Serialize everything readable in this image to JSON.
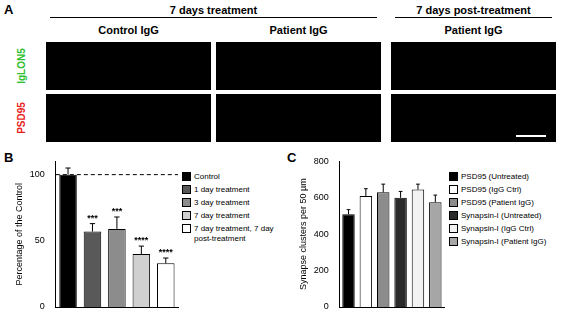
{
  "figure": {
    "panel_labels": [
      "A",
      "B",
      "C"
    ],
    "panel_a": {
      "groups": [
        {
          "label": "7 days treatment",
          "columns": [
            "Control IgG",
            "Patient IgG"
          ]
        },
        {
          "label": "7 days post-treatment",
          "columns": [
            "Patient IgG"
          ]
        }
      ],
      "rows": [
        {
          "label": "IgLON5",
          "color": "#2fbf2f"
        },
        {
          "label": "PSD95",
          "color": "#e81e1e"
        }
      ]
    }
  },
  "chart_data": [
    {
      "type": "bar",
      "y_label": "Percentage of the Control",
      "categories": [
        "Control",
        "1 day treatment",
        "3 day treatment",
        "7 day treatment",
        "7 day treatment, 7 day post-treatment"
      ],
      "values": [
        100,
        57,
        59,
        40,
        33
      ],
      "errors": [
        5,
        6,
        9,
        6,
        4
      ],
      "significance": [
        null,
        "***",
        "***",
        "****",
        "****"
      ],
      "colors": [
        "#000000",
        "#595959",
        "#8c8c8c",
        "#d0d0d0",
        "#ffffff"
      ],
      "reference_line": {
        "value": 100,
        "line_style": "dashed"
      },
      "ylim": [
        0,
        110
      ],
      "yticks": [
        0,
        50,
        100
      ],
      "grid": false,
      "legend": "right",
      "tick_labels": "y"
    },
    {
      "type": "bar",
      "y_label": "Synapse clusters per 50 µm",
      "categories": [
        "PSD95 (Untreated)",
        "PSD95 (IgG Ctrl)",
        "PSD95 (Patient IgG)",
        "Synapsin-I (Untreated)",
        "Synapsin-I (IgG Ctrl)",
        "Synapsin-I (Patient IgG)"
      ],
      "values": [
        510,
        610,
        630,
        600,
        645,
        575
      ],
      "errors": [
        25,
        40,
        45,
        35,
        30,
        40
      ],
      "colors": [
        "#000000",
        "#ffffff",
        "#8c8c8c",
        "#2b2b2b",
        "#f2f2f2",
        "#a6a6a6"
      ],
      "ylim": [
        0,
        800
      ],
      "yticks": [
        0,
        200,
        400,
        600,
        800
      ],
      "grid": false,
      "legend": "right",
      "tick_labels": "y"
    }
  ]
}
